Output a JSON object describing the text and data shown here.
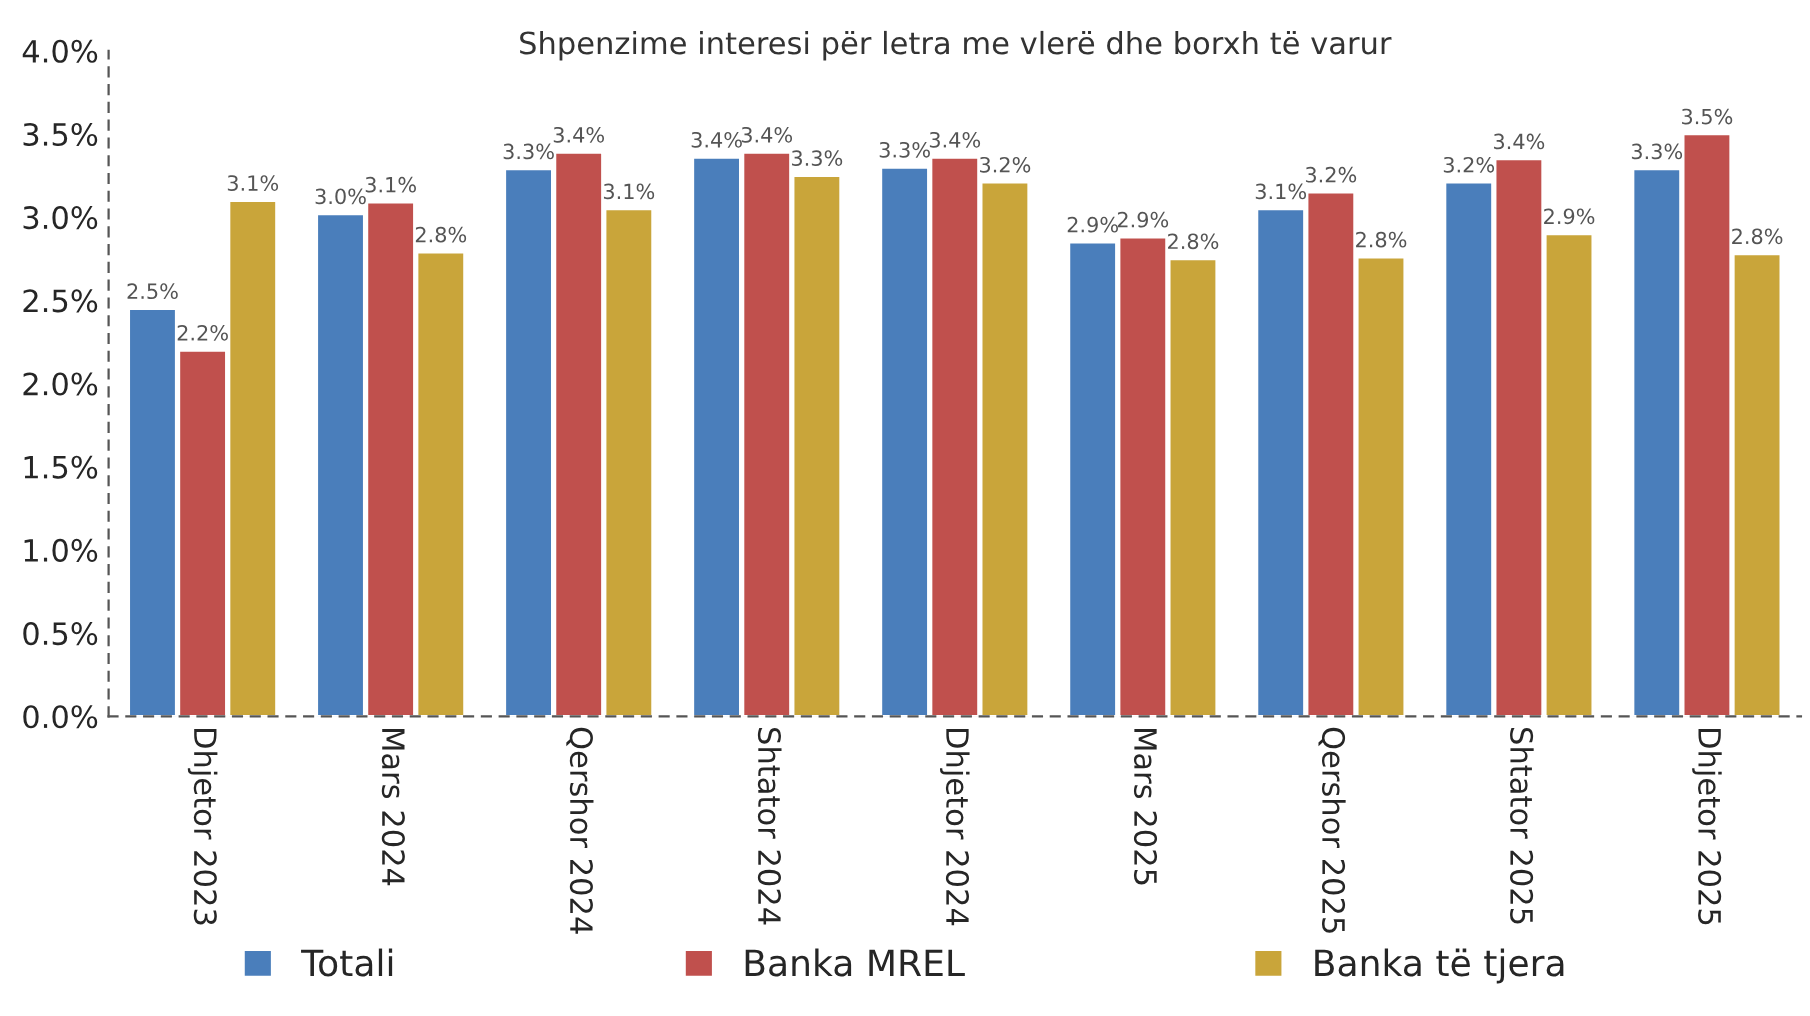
{
  "chart_data": {
    "type": "bar",
    "title": "Shpenzime interesi për letra me vlerë dhe borxh të varur",
    "categories": [
      "Dhjetor 2023",
      "Mars 2024",
      "Qershor 2024",
      "Shtator 2024",
      "Dhjetor 2024",
      "Mars 2025",
      "Qershor 2025",
      "Shtator 2025",
      "Dhjetor 2025"
    ],
    "series": [
      {
        "name": "Totali",
        "color": "#4a7ebb",
        "values": [
          2.45,
          3.02,
          3.29,
          3.36,
          3.3,
          2.85,
          3.05,
          3.21,
          3.29
        ],
        "value_labels": [
          "2.5%",
          "3.0%",
          "3.3%",
          "3.4%",
          "3.3%",
          "2.9%",
          "3.1%",
          "3.2%",
          "3.3%"
        ]
      },
      {
        "name": "Banka MREL",
        "color": "#c0504d",
        "values": [
          2.2,
          3.09,
          3.39,
          3.39,
          3.36,
          2.88,
          3.15,
          3.35,
          3.5
        ],
        "value_labels": [
          "2.2%",
          "3.1%",
          "3.4%",
          "3.4%",
          "3.4%",
          "2.9%",
          "3.2%",
          "3.4%",
          "3.5%"
        ]
      },
      {
        "name": "Banka të tjera",
        "color": "#c9a53a",
        "values": [
          3.1,
          2.79,
          3.05,
          3.25,
          3.21,
          2.75,
          2.76,
          2.9,
          2.78
        ],
        "value_labels": [
          "3.1%",
          "2.8%",
          "3.1%",
          "3.3%",
          "3.2%",
          "2.8%",
          "2.8%",
          "2.9%",
          "2.8%"
        ]
      }
    ],
    "ylim": [
      0,
      4.0
    ],
    "yticks": [
      {
        "value": 0,
        "label": "0.0%"
      },
      {
        "value": 0.5,
        "label": "0.5%"
      },
      {
        "value": 1.0,
        "label": "1.0%"
      },
      {
        "value": 1.5,
        "label": "1.5%"
      },
      {
        "value": 2.0,
        "label": "2.0%"
      },
      {
        "value": 2.5,
        "label": "2.5%"
      },
      {
        "value": 3.0,
        "label": "3.0%"
      },
      {
        "value": 3.5,
        "label": "3.5%"
      },
      {
        "value": 4.0,
        "label": "4.0%"
      }
    ],
    "grid": false,
    "legend": "bottom"
  }
}
